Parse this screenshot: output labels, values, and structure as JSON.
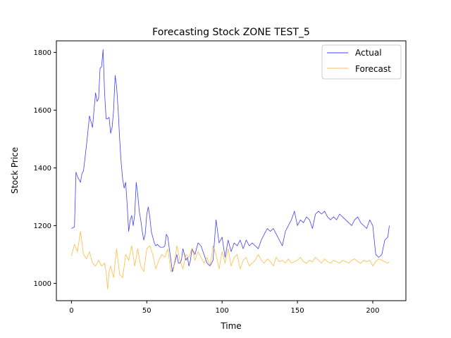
{
  "chart_data": {
    "type": "line",
    "title": "Forecasting Stock ZONE TEST_5",
    "xlabel": "Time",
    "ylabel": "Stock Price",
    "xlim": [
      -10,
      222
    ],
    "ylim": [
      940,
      1840
    ],
    "xticks": [
      0,
      50,
      100,
      150,
      200
    ],
    "yticks": [
      1000,
      1200,
      1400,
      1600,
      1800
    ],
    "grid": false,
    "legend": "top-right",
    "series": [
      {
        "name": "Actual",
        "color": "#0000ff",
        "x": [
          0,
          2,
          3,
          4,
          6,
          7,
          8,
          10,
          12,
          14,
          15,
          16,
          17,
          18,
          19,
          20,
          21,
          22,
          23,
          24,
          25,
          26,
          27,
          28,
          29,
          30,
          31,
          32,
          33,
          34,
          35,
          36,
          37,
          38,
          39,
          40,
          41,
          42,
          43,
          44,
          45,
          46,
          47,
          48,
          49,
          50,
          51,
          52,
          53,
          54,
          55,
          56,
          57,
          58,
          59,
          60,
          61,
          62,
          63,
          64,
          65,
          66,
          67,
          68,
          69,
          70,
          71,
          72,
          73,
          74,
          75,
          76,
          77,
          78,
          79,
          80,
          82,
          84,
          86,
          88,
          90,
          92,
          94,
          96,
          98,
          100,
          102,
          104,
          106,
          108,
          110,
          112,
          114,
          116,
          118,
          120,
          122,
          124,
          126,
          128,
          130,
          132,
          134,
          136,
          138,
          140,
          142,
          144,
          146,
          148,
          150,
          152,
          154,
          156,
          158,
          160,
          162,
          164,
          166,
          168,
          170,
          172,
          174,
          176,
          178,
          180,
          182,
          184,
          186,
          188,
          190,
          192,
          194,
          196,
          198,
          200,
          202,
          204,
          206,
          208,
          210,
          211
        ],
        "y": [
          1190,
          1195,
          1385,
          1370,
          1350,
          1380,
          1390,
          1480,
          1580,
          1540,
          1600,
          1660,
          1630,
          1640,
          1745,
          1750,
          1810,
          1660,
          1570,
          1570,
          1575,
          1520,
          1540,
          1600,
          1720,
          1680,
          1600,
          1500,
          1420,
          1360,
          1330,
          1350,
          1270,
          1180,
          1220,
          1235,
          1200,
          1240,
          1350,
          1310,
          1250,
          1220,
          1180,
          1150,
          1170,
          1240,
          1265,
          1230,
          1180,
          1160,
          1140,
          1130,
          1135,
          1130,
          1125,
          1125,
          1125,
          1130,
          1170,
          1160,
          1120,
          1080,
          1040,
          1060,
          1080,
          1100,
          1070,
          1070,
          1080,
          1120,
          1100,
          1080,
          1090,
          1060,
          1080,
          1120,
          1100,
          1140,
          1130,
          1100,
          1070,
          1060,
          1080,
          1220,
          1140,
          1160,
          1090,
          1150,
          1110,
          1140,
          1130,
          1150,
          1120,
          1150,
          1130,
          1140,
          1130,
          1120,
          1150,
          1170,
          1190,
          1180,
          1190,
          1170,
          1150,
          1130,
          1180,
          1200,
          1220,
          1250,
          1200,
          1220,
          1210,
          1230,
          1220,
          1190,
          1240,
          1250,
          1240,
          1250,
          1230,
          1220,
          1230,
          1220,
          1240,
          1230,
          1220,
          1210,
          1200,
          1220,
          1230,
          1210,
          1200,
          1190,
          1220,
          1200,
          1100,
          1090,
          1100,
          1150,
          1160,
          1200
        ]
      },
      {
        "name": "Forecast",
        "color": "#ffa500",
        "x": [
          0,
          2,
          4,
          6,
          8,
          10,
          12,
          14,
          16,
          18,
          20,
          22,
          23,
          24,
          25,
          26,
          28,
          30,
          32,
          34,
          36,
          38,
          40,
          42,
          44,
          46,
          48,
          50,
          52,
          54,
          56,
          58,
          60,
          62,
          64,
          66,
          68,
          70,
          72,
          74,
          76,
          78,
          80,
          82,
          84,
          86,
          88,
          90,
          92,
          94,
          96,
          98,
          100,
          102,
          104,
          106,
          108,
          110,
          112,
          114,
          116,
          118,
          120,
          122,
          124,
          126,
          128,
          130,
          132,
          134,
          136,
          138,
          140,
          142,
          144,
          146,
          148,
          150,
          152,
          154,
          156,
          158,
          160,
          162,
          164,
          166,
          168,
          170,
          172,
          174,
          176,
          178,
          180,
          182,
          184,
          186,
          188,
          190,
          192,
          194,
          196,
          198,
          200,
          202,
          204,
          206,
          208,
          210,
          211
        ],
        "y": [
          1095,
          1135,
          1110,
          1180,
          1100,
          1085,
          1110,
          1070,
          1060,
          1080,
          1060,
          1070,
          1040,
          980,
          1040,
          1060,
          1020,
          1120,
          1030,
          1020,
          1100,
          1080,
          1130,
          1060,
          1120,
          1060,
          1040,
          1120,
          1130,
          1100,
          1050,
          1080,
          1100,
          1090,
          1120,
          1040,
          1060,
          1130,
          1080,
          1050,
          1100,
          1090,
          1120,
          1080,
          1110,
          1090,
          1070,
          1090,
          1060,
          1130,
          1100,
          1050,
          1110,
          1070,
          1120,
          1060,
          1090,
          1100,
          1050,
          1080,
          1090,
          1060,
          1070,
          1080,
          1100,
          1080,
          1070,
          1085,
          1075,
          1060,
          1090,
          1075,
          1080,
          1070,
          1085,
          1070,
          1075,
          1080,
          1090,
          1075,
          1070,
          1080,
          1075,
          1090,
          1080,
          1070,
          1085,
          1075,
          1070,
          1080,
          1075,
          1070,
          1080,
          1075,
          1070,
          1080,
          1085,
          1075,
          1070,
          1080,
          1075,
          1080,
          1060,
          1075,
          1085,
          1080,
          1075,
          1070,
          1075
        ]
      }
    ]
  }
}
